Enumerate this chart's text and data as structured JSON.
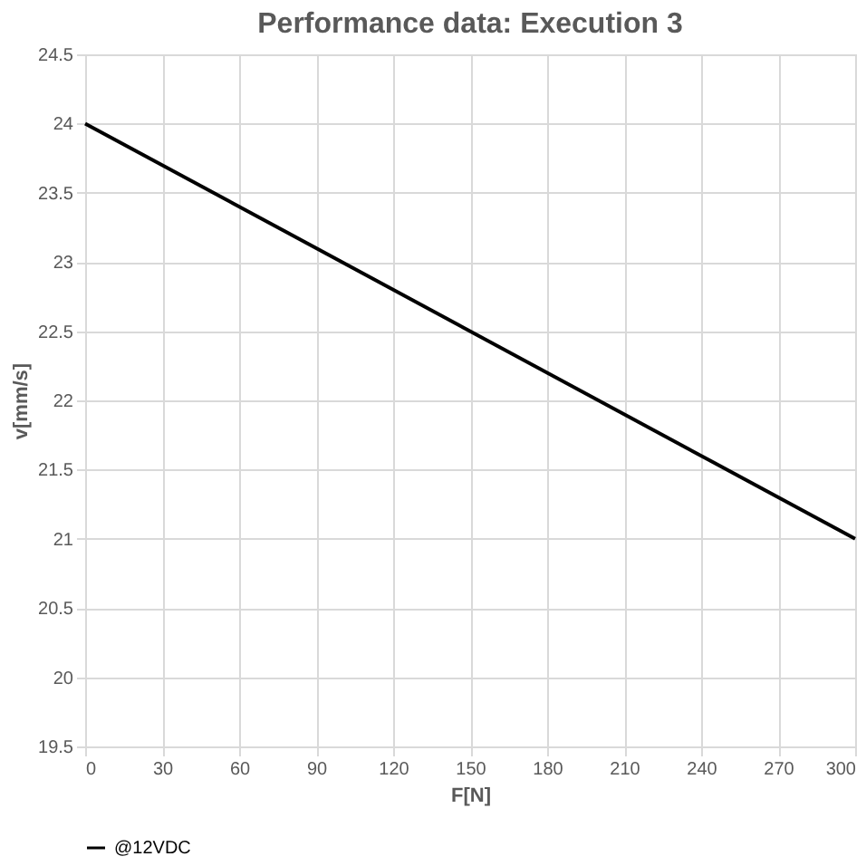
{
  "chart_data": {
    "type": "line",
    "title": "Performance data: Execution 3",
    "xlabel": "F[N]",
    "ylabel": "v[mm/s]",
    "x": [
      0,
      300
    ],
    "series": [
      {
        "name": "@12VDC",
        "color": "#000000",
        "values": [
          24,
          21
        ]
      }
    ],
    "xlim": [
      0,
      300
    ],
    "xticks": [
      0,
      30,
      60,
      90,
      120,
      150,
      180,
      210,
      240,
      270,
      300
    ],
    "ylim": [
      19.5,
      24.5
    ],
    "yticks": [
      19.5,
      20,
      20.5,
      21,
      21.5,
      22,
      22.5,
      23,
      23.5,
      24,
      24.5
    ],
    "grid": true,
    "legend": "bottom",
    "marker": "none",
    "line_style": "solid"
  }
}
